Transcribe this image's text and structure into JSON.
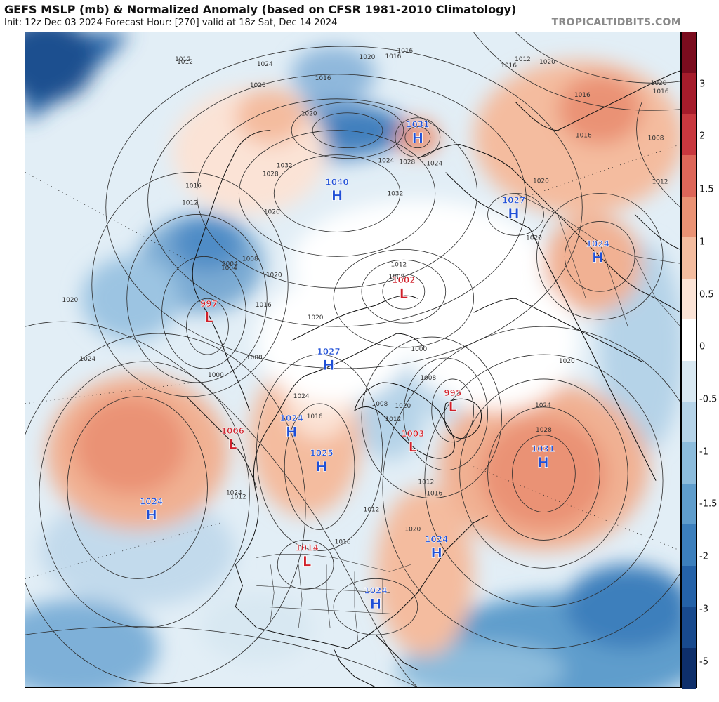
{
  "header": {
    "title": "GEFS MSLP (mb) & Normalized Anomaly (based on CFSR 1981-2010 Climatology)",
    "subtitle": "Init: 12z Dec 03 2024   Forecast Hour: [270]   valid at 18z Sat, Dec 14 2024",
    "credit": "TROPICALTIDBITS.COM"
  },
  "colorbar": {
    "labels": [
      "3",
      "2",
      "1.5",
      "1",
      "0.5",
      "0",
      "-0.5",
      "-1",
      "-1.5",
      "-2",
      "-3",
      "-5"
    ],
    "colors": [
      "#7a0c1e",
      "#a51c2b",
      "#c8383f",
      "#dd6659",
      "#ea9274",
      "#f4bc9f",
      "#fbe3d6",
      "#ffffff",
      "#d8e8f2",
      "#b5d3e8",
      "#8cbcdc",
      "#5f9dcc",
      "#3c7fbc",
      "#2462a8",
      "#184a8e",
      "#0e2f6b"
    ]
  },
  "colors": {
    "high": "#1f4fd6",
    "low": "#d0202a",
    "contour": "#2b2b2b",
    "coast": "#111111"
  },
  "pressure_centers": [
    {
      "type": "H",
      "value": "1040"
    },
    {
      "type": "H",
      "value": "1031"
    },
    {
      "type": "H",
      "value": "1027"
    },
    {
      "type": "H",
      "value": "1024"
    },
    {
      "type": "H",
      "value": "1027"
    },
    {
      "type": "H",
      "value": "1024"
    },
    {
      "type": "H",
      "value": "1025"
    },
    {
      "type": "H",
      "value": "1024"
    },
    {
      "type": "H",
      "value": "1024"
    },
    {
      "type": "H",
      "value": "1031"
    },
    {
      "type": "H",
      "value": "1024"
    },
    {
      "type": "L",
      "value": "997"
    },
    {
      "type": "L",
      "value": "1006"
    },
    {
      "type": "L",
      "value": "1002"
    },
    {
      "type": "L",
      "value": "995"
    },
    {
      "type": "L",
      "value": "1003"
    },
    {
      "type": "L",
      "value": "1014"
    }
  ],
  "isobar_labels": [
    "1012",
    "1024",
    "1028",
    "1016",
    "1020",
    "1020",
    "1032",
    "1024",
    "1028",
    "1016",
    "1020",
    "1016",
    "1016",
    "1012",
    "1012",
    "1028",
    "1032",
    "1024",
    "1016",
    "1012",
    "1008",
    "1004",
    "1020",
    "1016",
    "1020",
    "1012",
    "1008",
    "1020",
    "1016",
    "1008",
    "1004",
    "1000",
    "1024",
    "1012",
    "1008",
    "1000",
    "1008",
    "1012",
    "1016",
    "1016",
    "1020",
    "1024",
    "1028",
    "1012",
    "1020",
    "1020",
    "1016",
    "1016",
    "1020",
    "1008",
    "1012",
    "1020",
    "1016",
    "1020",
    "1020",
    "1024",
    "1024",
    "1012",
    "1008"
  ]
}
